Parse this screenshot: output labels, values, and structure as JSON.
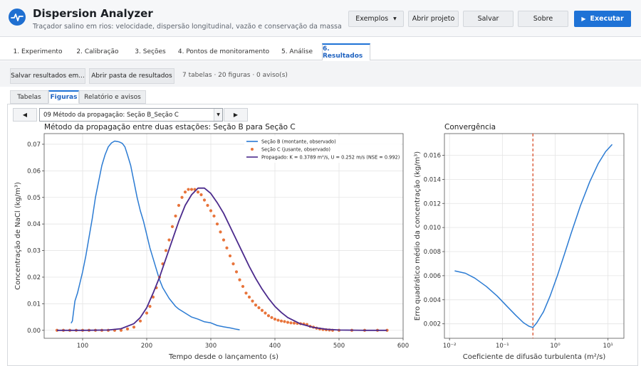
{
  "header": {
    "title": "Dispersion Analyzer",
    "subtitle": "Traçador salino em rios: velocidade, dispersão longitudinal, vazão e conservação da massa",
    "buttons": {
      "examples": "Exemplos",
      "open": "Abrir projeto",
      "save": "Salvar",
      "about": "Sobre",
      "run": "Executar"
    },
    "icons": {
      "logo": "pulse-icon",
      "run": "play-icon",
      "examples": "caret-down-icon"
    }
  },
  "tabs": [
    {
      "label": "1. Experimento"
    },
    {
      "label": "2. Calibração"
    },
    {
      "label": "3. Seções"
    },
    {
      "label": "4. Pontos de monitoramento"
    },
    {
      "label": "5. Análise"
    },
    {
      "label": "6. Resultados"
    }
  ],
  "results_toolbar": {
    "save_label": "Salvar resultados em...",
    "open_label": "Abrir pasta de resultados",
    "info": "7 tabelas · 20 figuras · 0 aviso(s)"
  },
  "subtabs": [
    {
      "label": "Tabelas"
    },
    {
      "label": "Figuras"
    },
    {
      "label": "Relatório e avisos"
    }
  ],
  "figure_nav": {
    "prev": "◀",
    "next": "▶",
    "selected": "09 Método da propagação: Seção B_Seção C"
  },
  "chart_data": [
    {
      "type": "line",
      "title": "Método da propagação entre duas estações: Seção B para Seção C",
      "xlabel": "Tempo desde o lançamento (s)",
      "ylabel": "Concentração de NaCl (kg/m³)",
      "xlim": [
        40,
        600
      ],
      "ylim": [
        -0.003,
        0.074
      ],
      "xticks": [
        100,
        200,
        300,
        400,
        500,
        600
      ],
      "yticks": [
        0.0,
        0.01,
        0.02,
        0.03,
        0.04,
        0.05,
        0.06,
        0.07
      ],
      "ytick_labels": [
        "0.00",
        "0.01",
        "0.02",
        "0.03",
        "0.04",
        "0.05",
        "0.06",
        "0.07"
      ],
      "grid": true,
      "legend": "top-right",
      "series": [
        {
          "name": "Seção B (montante, observado)",
          "style": "line",
          "color": "#2b7bd3",
          "x": [
            82,
            84,
            88,
            92,
            96,
            100,
            105,
            110,
            115,
            120,
            125,
            130,
            135,
            140,
            145,
            150,
            155,
            158,
            162,
            166,
            170,
            175,
            180,
            185,
            190,
            195,
            200,
            205,
            210,
            215,
            220,
            225,
            230,
            235,
            240,
            245,
            250,
            260,
            270,
            280,
            290,
            300,
            310,
            320,
            330,
            340,
            345
          ],
          "y": [
            0.0027,
            0.0035,
            0.011,
            0.014,
            0.018,
            0.022,
            0.028,
            0.035,
            0.042,
            0.05,
            0.056,
            0.062,
            0.066,
            0.069,
            0.0705,
            0.0712,
            0.071,
            0.0708,
            0.0703,
            0.069,
            0.066,
            0.062,
            0.056,
            0.05,
            0.045,
            0.041,
            0.036,
            0.031,
            0.027,
            0.023,
            0.019,
            0.016,
            0.014,
            0.012,
            0.0105,
            0.009,
            0.008,
            0.0065,
            0.005,
            0.0042,
            0.0032,
            0.0028,
            0.0018,
            0.0013,
            0.0009,
            0.0004,
            0.0002
          ]
        },
        {
          "name": "Seção C (jusante, observado)",
          "style": "scatter",
          "color": "#e8743b",
          "x": [
            60,
            70,
            80,
            90,
            100,
            110,
            120,
            130,
            140,
            150,
            160,
            170,
            180,
            190,
            200,
            205,
            210,
            215,
            220,
            225,
            230,
            235,
            240,
            245,
            250,
            255,
            260,
            265,
            270,
            275,
            280,
            285,
            290,
            295,
            300,
            305,
            310,
            315,
            320,
            325,
            330,
            335,
            340,
            345,
            350,
            355,
            360,
            365,
            370,
            375,
            380,
            385,
            390,
            395,
            400,
            405,
            410,
            415,
            420,
            425,
            430,
            435,
            440,
            445,
            450,
            455,
            460,
            465,
            470,
            475,
            480,
            485,
            490,
            500,
            520,
            540,
            560,
            575
          ],
          "y": [
            0,
            0,
            0,
            0,
            0,
            0,
            0,
            0,
            0,
            0,
            0,
            0.0005,
            0.0012,
            0.0035,
            0.0065,
            0.009,
            0.0125,
            0.016,
            0.02,
            0.025,
            0.03,
            0.034,
            0.039,
            0.043,
            0.047,
            0.05,
            0.052,
            0.053,
            0.053,
            0.053,
            0.052,
            0.051,
            0.049,
            0.047,
            0.045,
            0.043,
            0.04,
            0.037,
            0.034,
            0.031,
            0.028,
            0.025,
            0.022,
            0.019,
            0.0165,
            0.014,
            0.0125,
            0.011,
            0.0095,
            0.0085,
            0.0075,
            0.0065,
            0.0055,
            0.0048,
            0.0042,
            0.0038,
            0.0035,
            0.0033,
            0.003,
            0.0028,
            0.0027,
            0.0026,
            0.0025,
            0.0024,
            0.0022,
            0.0015,
            0.0012,
            0.0008,
            0.0005,
            0.0003,
            0.0002,
            0.0001,
            0,
            0,
            0,
            0,
            0,
            0
          ]
        },
        {
          "name": "Propagado: K = 0.3789 m²/s, U = 0.252 m/s (NSE = 0.992)",
          "style": "line",
          "color": "#4b2a8c",
          "x": [
            60,
            100,
            140,
            160,
            180,
            190,
            200,
            210,
            220,
            230,
            240,
            250,
            260,
            270,
            280,
            290,
            300,
            310,
            320,
            330,
            340,
            350,
            360,
            370,
            380,
            390,
            400,
            410,
            420,
            440,
            460,
            480,
            500,
            540,
            575
          ],
          "y": [
            0,
            0,
            0.0001,
            0.0006,
            0.0025,
            0.0048,
            0.0085,
            0.014,
            0.02,
            0.027,
            0.034,
            0.041,
            0.047,
            0.051,
            0.0535,
            0.0535,
            0.0515,
            0.048,
            0.044,
            0.039,
            0.034,
            0.029,
            0.024,
            0.0195,
            0.0155,
            0.012,
            0.009,
            0.0067,
            0.0048,
            0.0024,
            0.0011,
            0.0004,
            0.0001,
            0,
            0
          ]
        }
      ]
    },
    {
      "type": "line",
      "title": "Convergência",
      "xlabel": "Coeficiente de difusão turbulenta (m²/s)",
      "ylabel": "Erro quadrático médio da concentração (kg/m³)",
      "xscale": "log",
      "xlim": [
        0.008,
        20
      ],
      "ylim": [
        0.0008,
        0.0178
      ],
      "xticks": [
        0.01,
        0.1,
        1,
        10
      ],
      "xtick_labels": [
        "10⁻²",
        "10⁻¹",
        "10⁰",
        "10¹"
      ],
      "yticks": [
        0.002,
        0.004,
        0.006,
        0.008,
        0.01,
        0.012,
        0.014,
        0.016
      ],
      "ytick_labels": [
        "0.002",
        "0.004",
        "0.006",
        "0.008",
        "0.010",
        "0.012",
        "0.014",
        "0.016"
      ],
      "grid": true,
      "optimum_line": {
        "x": 0.3789,
        "color": "#d9502c"
      },
      "series": [
        {
          "style": "line",
          "color": "#2b7bd3",
          "x": [
            0.0125,
            0.02,
            0.03,
            0.05,
            0.08,
            0.12,
            0.18,
            0.25,
            0.32,
            0.3789,
            0.45,
            0.6,
            0.8,
            1.1,
            1.5,
            2.0,
            3.0,
            4.5,
            6.5,
            9.0,
            12.0
          ],
          "y": [
            0.0064,
            0.0062,
            0.0058,
            0.0051,
            0.0043,
            0.0035,
            0.0027,
            0.0021,
            0.0018,
            0.0017,
            0.0021,
            0.003,
            0.0043,
            0.006,
            0.0078,
            0.0095,
            0.0118,
            0.0138,
            0.0153,
            0.0163,
            0.0169
          ]
        }
      ]
    }
  ]
}
